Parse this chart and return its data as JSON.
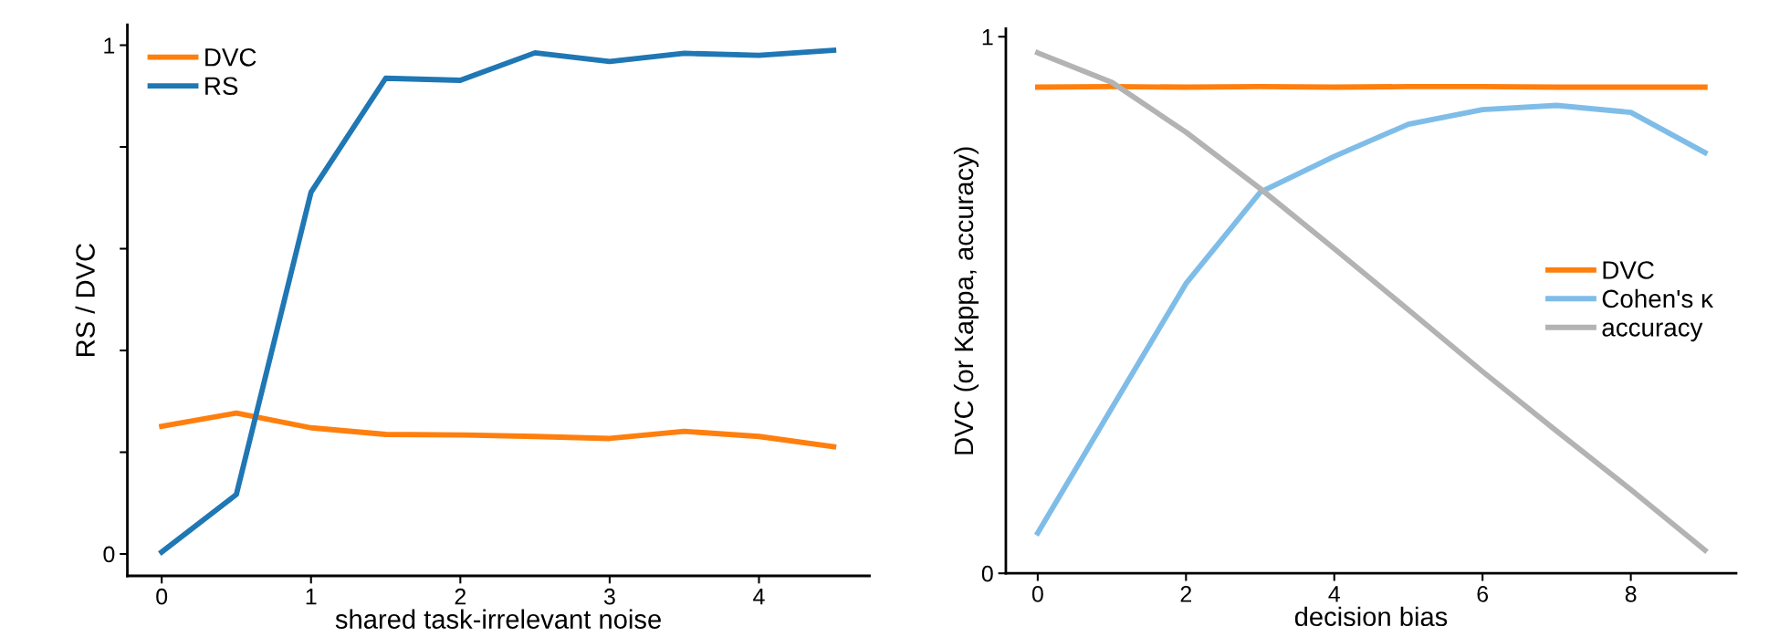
{
  "chart_data": [
    {
      "type": "line",
      "xlabel": "shared task-irrelevant noise",
      "ylabel": "RS / DVC",
      "x": [
        0,
        0.5,
        1,
        1.5,
        2,
        2.5,
        3,
        3.5,
        4,
        4.5
      ],
      "series": [
        {
          "name": "DVC",
          "color": "#ff7f0e",
          "values": [
            0.251,
            0.277,
            0.248,
            0.235,
            0.234,
            0.231,
            0.227,
            0.241,
            0.231,
            0.211
          ]
        },
        {
          "name": "RS",
          "color": "#1f77b4",
          "values": [
            0.004,
            0.117,
            0.711,
            0.935,
            0.931,
            0.985,
            0.968,
            0.984,
            0.98,
            0.99
          ]
        }
      ],
      "xlim": [
        -0.23,
        4.74
      ],
      "ylim": [
        -0.043,
        1.04
      ],
      "xticks": [
        0,
        1,
        2,
        3,
        4
      ],
      "yticks": [
        0,
        {
          "value": 0.2,
          "label": null
        },
        {
          "value": 0.4,
          "label": null
        },
        {
          "value": 0.6,
          "label": null
        },
        {
          "value": 0.8,
          "label": null
        },
        1
      ],
      "grid": false,
      "legend": "top left",
      "line_style": "solid",
      "marker": "none"
    },
    {
      "type": "line",
      "xlabel": "decision bias",
      "ylabel": "DVC (or Kappa, accuracy)",
      "x": [
        0,
        1,
        2,
        3,
        4,
        5,
        6,
        7,
        8,
        9
      ],
      "series": [
        {
          "name": "DVC",
          "color": "#ff7f0e",
          "values": [
            0.906,
            0.907,
            0.906,
            0.907,
            0.906,
            0.907,
            0.907,
            0.906,
            0.906,
            0.906
          ]
        },
        {
          "name": "Cohen's κ",
          "color": "#7fbde8",
          "values": [
            0.075,
            0.308,
            0.54,
            0.71,
            0.777,
            0.837,
            0.864,
            0.872,
            0.859,
            0.784
          ]
        },
        {
          "name": "accuracy",
          "color": "#b3b3b3",
          "values": [
            0.97,
            0.915,
            0.822,
            0.717,
            0.605,
            0.491,
            0.376,
            0.265,
            0.156,
            0.043
          ]
        }
      ],
      "xlim": [
        -0.43,
        9.42
      ],
      "ylim": [
        0,
        1.015
      ],
      "xticks": [
        0,
        2,
        4,
        6,
        8
      ],
      "yticks": [
        0,
        1
      ],
      "grid": false,
      "legend": "center right",
      "line_style": "solid",
      "marker": "none"
    }
  ]
}
